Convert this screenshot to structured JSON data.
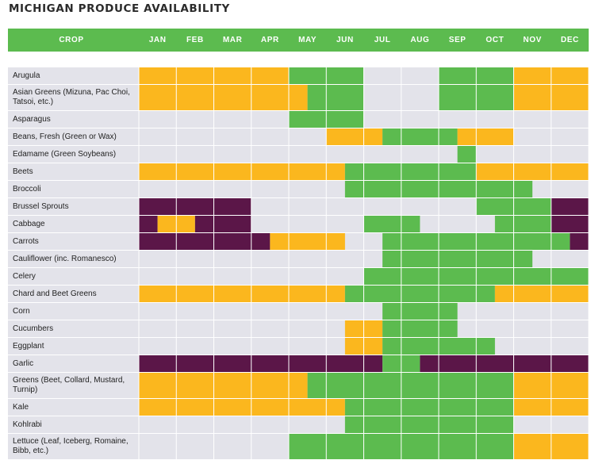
{
  "title": "MICHIGAN PRODUCE AVAILABILITY",
  "colors": {
    "header": "#5cbb4f",
    "grid_gray": "#e3e3ea",
    "grid_line": "#ffffff",
    "in_season": "#5cbb4f",
    "extended_season": "#fbb71e",
    "storage": "#5b1648"
  },
  "chart_data": {
    "type": "heatmap",
    "title": "MICHIGAN PRODUCE AVAILABILITY",
    "row_header": "CROP",
    "columns": [
      "JAN",
      "FEB",
      "MAR",
      "APR",
      "MAY",
      "JUN",
      "JUL",
      "AUG",
      "SEP",
      "OCT",
      "NOV",
      "DEC"
    ],
    "unit": "half-month periods, 1 = first half of January",
    "categories": {
      "G": "in_season",
      "O": "extended_season",
      "P": "storage"
    },
    "rows": [
      {
        "crop": "Arugula",
        "segments": [
          {
            "s": 1,
            "e": 8,
            "c": "O"
          },
          {
            "s": 9,
            "e": 12,
            "c": "G"
          },
          {
            "s": 17,
            "e": 20,
            "c": "G"
          },
          {
            "s": 21,
            "e": 24,
            "c": "O"
          }
        ]
      },
      {
        "crop": "Asian Greens (Mizuna, Pac Choi, Tatsoi, etc.)",
        "segments": [
          {
            "s": 1,
            "e": 9,
            "c": "O"
          },
          {
            "s": 10,
            "e": 12,
            "c": "G"
          },
          {
            "s": 17,
            "e": 20,
            "c": "G"
          },
          {
            "s": 21,
            "e": 24,
            "c": "O"
          }
        ]
      },
      {
        "crop": "Asparagus",
        "segments": [
          {
            "s": 9,
            "e": 12,
            "c": "G"
          }
        ]
      },
      {
        "crop": "Beans, Fresh (Green or Wax)",
        "segments": [
          {
            "s": 11,
            "e": 13,
            "c": "O"
          },
          {
            "s": 14,
            "e": 17,
            "c": "G"
          },
          {
            "s": 18,
            "e": 20,
            "c": "O"
          }
        ]
      },
      {
        "crop": "Edamame (Green Soybeans)",
        "segments": [
          {
            "s": 18,
            "e": 18,
            "c": "G"
          }
        ]
      },
      {
        "crop": "Beets",
        "segments": [
          {
            "s": 1,
            "e": 11,
            "c": "O"
          },
          {
            "s": 12,
            "e": 18,
            "c": "G"
          },
          {
            "s": 19,
            "e": 24,
            "c": "O"
          }
        ]
      },
      {
        "crop": "Broccoli",
        "segments": [
          {
            "s": 12,
            "e": 21,
            "c": "G"
          }
        ]
      },
      {
        "crop": "Brussel Sprouts",
        "segments": [
          {
            "s": 1,
            "e": 6,
            "c": "P"
          },
          {
            "s": 19,
            "e": 22,
            "c": "G"
          },
          {
            "s": 23,
            "e": 24,
            "c": "P"
          }
        ]
      },
      {
        "crop": "Cabbage",
        "segments": [
          {
            "s": 1,
            "e": 1,
            "c": "P"
          },
          {
            "s": 2,
            "e": 3,
            "c": "O"
          },
          {
            "s": 4,
            "e": 6,
            "c": "P"
          },
          {
            "s": 13,
            "e": 15,
            "c": "G"
          },
          {
            "s": 20,
            "e": 22,
            "c": "G"
          },
          {
            "s": 23,
            "e": 24,
            "c": "P"
          }
        ]
      },
      {
        "crop": "Carrots",
        "segments": [
          {
            "s": 1,
            "e": 7,
            "c": "P"
          },
          {
            "s": 8,
            "e": 11,
            "c": "O"
          },
          {
            "s": 14,
            "e": 23,
            "c": "G"
          },
          {
            "s": 24,
            "e": 24,
            "c": "P"
          }
        ]
      },
      {
        "crop": "Cauliflower (inc. Romanesco)",
        "segments": [
          {
            "s": 14,
            "e": 21,
            "c": "G"
          }
        ]
      },
      {
        "crop": "Celery",
        "segments": [
          {
            "s": 13,
            "e": 24,
            "c": "G"
          }
        ]
      },
      {
        "crop": "Chard and Beet Greens",
        "segments": [
          {
            "s": 1,
            "e": 11,
            "c": "O"
          },
          {
            "s": 12,
            "e": 19,
            "c": "G"
          },
          {
            "s": 20,
            "e": 24,
            "c": "O"
          }
        ]
      },
      {
        "crop": "Corn",
        "segments": [
          {
            "s": 14,
            "e": 17,
            "c": "G"
          }
        ]
      },
      {
        "crop": "Cucumbers",
        "segments": [
          {
            "s": 12,
            "e": 13,
            "c": "O"
          },
          {
            "s": 14,
            "e": 17,
            "c": "G"
          }
        ]
      },
      {
        "crop": "Eggplant",
        "segments": [
          {
            "s": 12,
            "e": 13,
            "c": "O"
          },
          {
            "s": 14,
            "e": 19,
            "c": "G"
          }
        ]
      },
      {
        "crop": "Garlic",
        "segments": [
          {
            "s": 1,
            "e": 13,
            "c": "P"
          },
          {
            "s": 14,
            "e": 15,
            "c": "G"
          },
          {
            "s": 16,
            "e": 24,
            "c": "P"
          }
        ]
      },
      {
        "crop": "Greens (Beet, Collard, Mustard, Turnip)",
        "segments": [
          {
            "s": 1,
            "e": 9,
            "c": "O"
          },
          {
            "s": 10,
            "e": 20,
            "c": "G"
          },
          {
            "s": 21,
            "e": 24,
            "c": "O"
          }
        ]
      },
      {
        "crop": "Kale",
        "segments": [
          {
            "s": 1,
            "e": 11,
            "c": "O"
          },
          {
            "s": 12,
            "e": 20,
            "c": "G"
          },
          {
            "s": 21,
            "e": 24,
            "c": "O"
          }
        ]
      },
      {
        "crop": "Kohlrabi",
        "segments": [
          {
            "s": 12,
            "e": 20,
            "c": "G"
          }
        ]
      },
      {
        "crop": "Lettuce (Leaf, Iceberg, Romaine, Bibb, etc.)",
        "segments": [
          {
            "s": 9,
            "e": 20,
            "c": "G"
          },
          {
            "s": 21,
            "e": 24,
            "c": "O"
          }
        ]
      }
    ]
  }
}
